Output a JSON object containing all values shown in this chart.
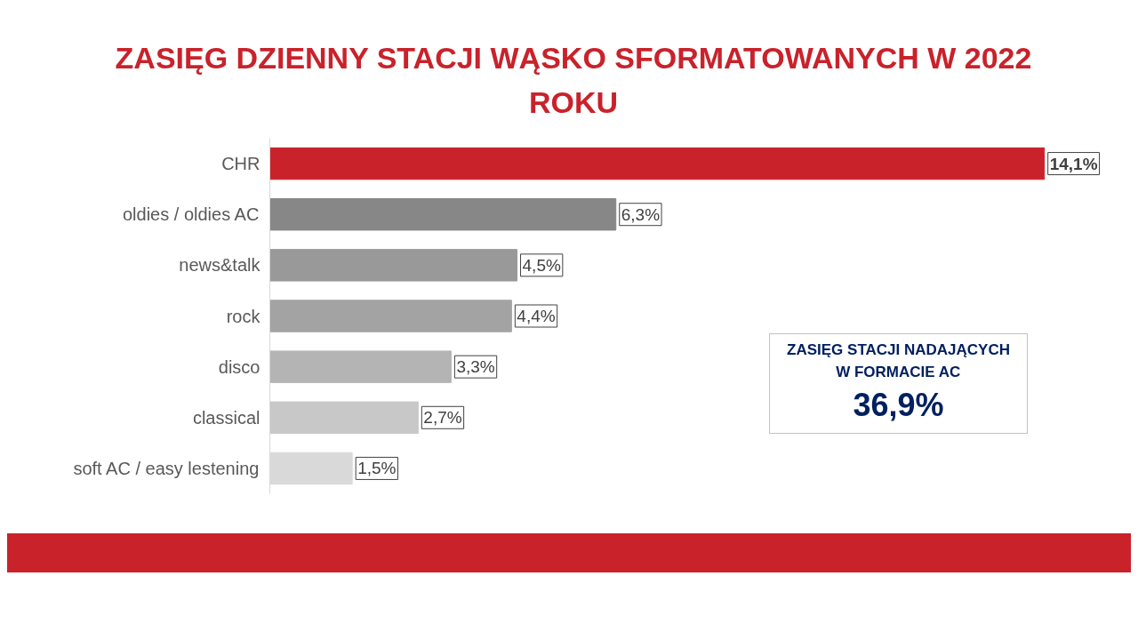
{
  "chart_data": {
    "type": "bar",
    "orientation": "horizontal",
    "title": "ZASIĘG DZIENNY STACJI WĄSKO SFORMATOWANYCH W 2022 ROKU",
    "categories": [
      "CHR",
      "oldies / oldies AC",
      "news&talk",
      "rock",
      "disco",
      "classical",
      "soft AC / easy lestening"
    ],
    "values": [
      14.1,
      6.3,
      4.5,
      4.4,
      3.3,
      2.7,
      1.5
    ],
    "colors": [
      "#c9222b",
      "#878787",
      "#999999",
      "#a3a3a3",
      "#b4b4b4",
      "#c8c8c8",
      "#d9d9d9"
    ],
    "value_labels": [
      "14,1%",
      "6,3%",
      "4,5%",
      "4,4%",
      "3,3%",
      "2,7%",
      "1,5%"
    ],
    "tick_labels": "y",
    "grid": false,
    "annotations": [
      "ZASIĘG STACJI NADAJĄCYCH",
      "W FORMACIE AC",
      "36,9%"
    ]
  }
}
